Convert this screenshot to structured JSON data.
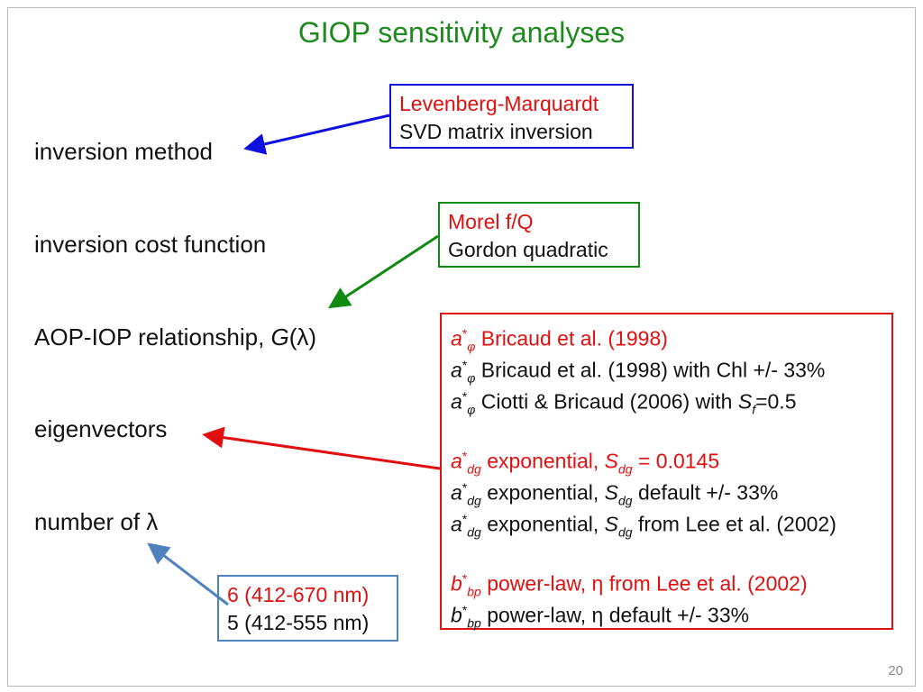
{
  "title": "GIOP sensitivity analyses",
  "parameters": [
    [
      "inversion method"
    ],
    [
      "inversion cost function"
    ],
    [
      "AOP-IOP relationship, ",
      "G",
      "(λ)"
    ],
    [
      "eigenvectors"
    ],
    [
      "number of λ"
    ]
  ],
  "method_box": [
    "Levenberg-Marquardt",
    "SVD matrix inversion"
  ],
  "cost_box": [
    "Morel f/Q",
    "Gordon quadratic"
  ],
  "iop_box": [
    [
      "a",
      "*",
      "φ",
      " Bricaud et al. (1998)"
    ],
    [
      "a",
      "*",
      "φ",
      " Bricaud et al. (1998) with Chl +/- 33%"
    ],
    [
      "a",
      "*",
      "φ",
      " Ciotti & Bricaud (2006) with ",
      "S",
      "f",
      "=0.5"
    ],
    [
      "a",
      "*",
      "dg",
      " exponential, ",
      "S",
      "dg",
      " = 0.0145"
    ],
    [
      "a",
      "*",
      "dg",
      " exponential, ",
      "S",
      "dg",
      " default +/- 33%"
    ],
    [
      "a",
      "*",
      "dg",
      " exponential, ",
      "S",
      "dg",
      " from Lee et al. (2002)"
    ],
    [
      "b",
      "*",
      "bp",
      " power-law, η from Lee et al. (2002)"
    ],
    [
      "b",
      "*",
      "bp",
      " power-law, η default +/- 33%"
    ]
  ],
  "wavelength_box": [
    "6 (412-670 nm)",
    "5 (412-555 nm)"
  ],
  "page_number": "20"
}
